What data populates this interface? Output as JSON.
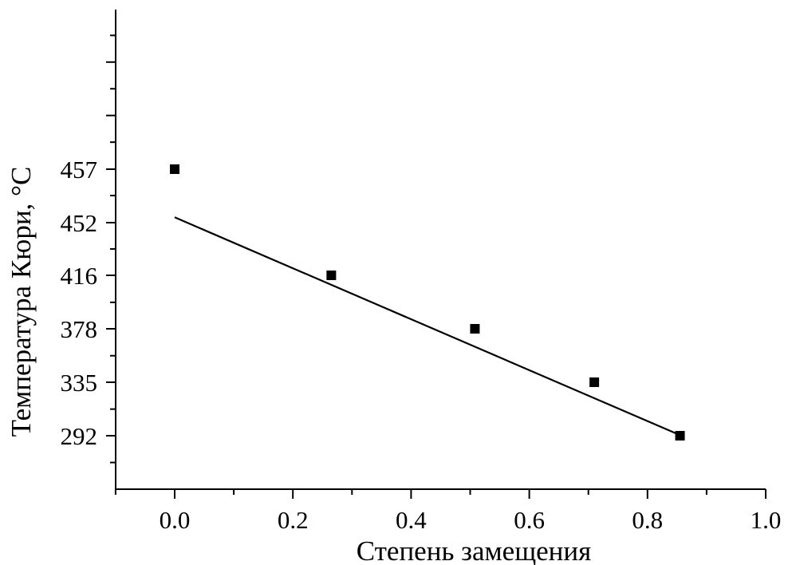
{
  "chart_data": {
    "type": "scatter",
    "title": "",
    "xlabel": "Степень замещения",
    "ylabel": "Температура Кюри, °C",
    "xlim": [
      -0.1,
      1.0
    ],
    "x_ticks": [
      "0.0",
      "0.2",
      "0.4",
      "0.6",
      "0.8",
      "1.0"
    ],
    "y_ticks": [
      "292",
      "335",
      "378",
      "416",
      "452",
      "457"
    ],
    "grid": false,
    "legend": "none",
    "marker": "square",
    "color": "#000000",
    "points": [
      {
        "x": 0.0,
        "y": 457
      },
      {
        "x": 0.265,
        "y": 416
      },
      {
        "x": 0.508,
        "y": 378
      },
      {
        "x": 0.71,
        "y": 335
      },
      {
        "x": 0.855,
        "y": 292
      }
    ],
    "fit_line": {
      "start": {
        "x": 0.0,
        "y": 452.5
      },
      "end": {
        "x": 0.85,
        "y": 293.5
      }
    }
  }
}
